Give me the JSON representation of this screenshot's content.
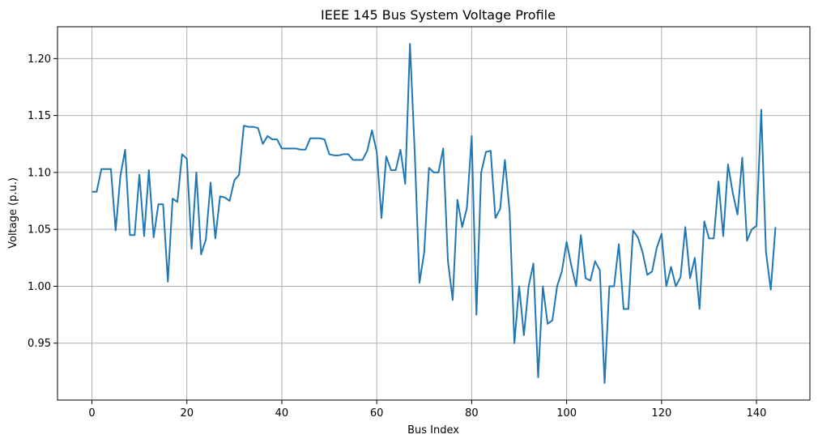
{
  "chart_data": {
    "type": "line",
    "title": "IEEE 145 Bus System Voltage Profile",
    "xlabel": "Bus Index",
    "ylabel": "Voltage (p.u.)",
    "xlim": [
      -7.25,
      151.25
    ],
    "ylim": [
      0.9,
      1.228
    ],
    "xticks": [
      0,
      20,
      40,
      60,
      80,
      100,
      120,
      140
    ],
    "yticks": [
      0.95,
      1.0,
      1.05,
      1.1,
      1.15,
      1.2
    ],
    "xtick_labels": [
      "0",
      "20",
      "40",
      "60",
      "80",
      "100",
      "120",
      "140"
    ],
    "ytick_labels": [
      "0.95",
      "1.00",
      "1.05",
      "1.10",
      "1.15",
      "1.20"
    ],
    "grid": true,
    "series": [
      {
        "color": "#1f77b4",
        "x": [
          0,
          1,
          2,
          3,
          4,
          5,
          6,
          7,
          8,
          9,
          10,
          11,
          12,
          13,
          14,
          15,
          16,
          17,
          18,
          19,
          20,
          21,
          22,
          23,
          24,
          25,
          26,
          27,
          28,
          29,
          30,
          31,
          32,
          33,
          34,
          35,
          36,
          37,
          38,
          39,
          40,
          41,
          42,
          43,
          44,
          45,
          46,
          47,
          48,
          49,
          50,
          51,
          52,
          53,
          54,
          55,
          56,
          57,
          58,
          59,
          60,
          61,
          62,
          63,
          64,
          65,
          66,
          67,
          68,
          69,
          70,
          71,
          72,
          73,
          74,
          75,
          76,
          77,
          78,
          79,
          80,
          81,
          82,
          83,
          84,
          85,
          86,
          87,
          88,
          89,
          90,
          91,
          92,
          93,
          94,
          95,
          96,
          97,
          98,
          99,
          100,
          101,
          102,
          103,
          104,
          105,
          106,
          107,
          108,
          109,
          110,
          111,
          112,
          113,
          114,
          115,
          116,
          117,
          118,
          119,
          120,
          121,
          122,
          123,
          124,
          125,
          126,
          127,
          128,
          129,
          130,
          131,
          132,
          133,
          134,
          135,
          136,
          137,
          138,
          139,
          140,
          141,
          142,
          143,
          144
        ],
        "values": [
          1.083,
          1.083,
          1.103,
          1.103,
          1.103,
          1.049,
          1.097,
          1.12,
          1.045,
          1.045,
          1.098,
          1.044,
          1.102,
          1.043,
          1.072,
          1.072,
          1.004,
          1.077,
          1.074,
          1.116,
          1.112,
          1.033,
          1.1,
          1.028,
          1.041,
          1.091,
          1.042,
          1.079,
          1.078,
          1.075,
          1.093,
          1.098,
          1.141,
          1.14,
          1.14,
          1.139,
          1.125,
          1.132,
          1.129,
          1.129,
          1.121,
          1.121,
          1.121,
          1.121,
          1.12,
          1.12,
          1.13,
          1.13,
          1.13,
          1.129,
          1.116,
          1.115,
          1.115,
          1.116,
          1.116,
          1.111,
          1.111,
          1.111,
          1.119,
          1.137,
          1.118,
          1.06,
          1.114,
          1.102,
          1.102,
          1.12,
          1.09,
          1.213,
          1.118,
          1.003,
          1.03,
          1.104,
          1.1,
          1.1,
          1.121,
          1.022,
          0.988,
          1.076,
          1.052,
          1.069,
          1.132,
          0.975,
          1.1,
          1.118,
          1.119,
          1.06,
          1.068,
          1.111,
          1.065,
          0.95,
          1.0,
          0.957,
          1.0,
          1.02,
          0.92,
          1.0,
          0.967,
          0.97,
          1.0,
          1.013,
          1.039,
          1.018,
          1.0,
          1.045,
          1.007,
          1.005,
          1.022,
          1.014,
          0.915,
          1.0,
          1.0,
          1.037,
          0.98,
          0.98,
          1.049,
          1.043,
          1.03,
          1.01,
          1.013,
          1.034,
          1.046,
          1.0,
          1.017,
          1.0,
          1.008,
          1.052,
          1.007,
          1.025,
          0.98,
          1.057,
          1.042,
          1.042,
          1.092,
          1.044,
          1.107,
          1.082,
          1.063,
          1.113,
          1.04,
          1.05,
          1.053,
          1.155,
          1.03,
          0.997,
          1.052
        ]
      }
    ]
  }
}
